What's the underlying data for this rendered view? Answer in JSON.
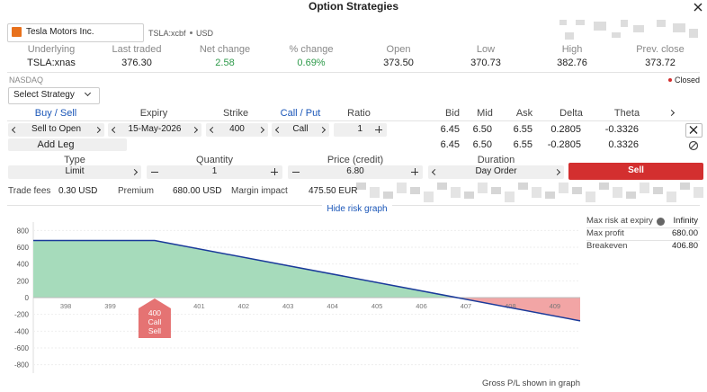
{
  "header": {
    "title": "Option Strategies"
  },
  "instrument": {
    "name": "Tesla Motors Inc.",
    "symbol": "TSLA:xcbf",
    "currency": "USD"
  },
  "quote": [
    {
      "label": "Underlying",
      "value": "TSLA:xnas"
    },
    {
      "label": "Last traded",
      "value": "376.30"
    },
    {
      "label": "Net change",
      "value": "2.58"
    },
    {
      "label": "% change",
      "value": "0.69%"
    },
    {
      "label": "Open",
      "value": "373.50"
    },
    {
      "label": "Low",
      "value": "370.73"
    },
    {
      "label": "High",
      "value": "382.76"
    },
    {
      "label": "Prev. close",
      "value": "373.72"
    }
  ],
  "exchange": "NASDAQ",
  "status": "Closed",
  "strategy_select": "Select Strategy",
  "legs": {
    "headers": [
      "Buy / Sell",
      "Expiry",
      "Strike",
      "Call / Put",
      "Ratio",
      "Bid",
      "Mid",
      "Ask",
      "Delta",
      "Theta"
    ],
    "row": {
      "side": "Sell to Open",
      "expiry": "15-May-2026",
      "strike": "400",
      "type": "Call",
      "ratio": "1",
      "bid": "6.45",
      "mid": "6.50",
      "ask": "6.55",
      "delta": "0.2805",
      "theta": "-0.3326"
    },
    "add_leg": "Add Leg",
    "totals": [
      "6.45",
      "6.50",
      "6.55",
      "-0.2805",
      "0.3326"
    ]
  },
  "order": {
    "fields": [
      {
        "label": "Type",
        "value": "Limit"
      },
      {
        "label": "Quantity",
        "value": "1"
      },
      {
        "label": "Price (credit)",
        "value": "6.80"
      },
      {
        "label": "Duration",
        "value": "Day Order"
      }
    ],
    "button": "Sell"
  },
  "summary": [
    {
      "label": "Trade fees",
      "value": "0.30 USD"
    },
    {
      "label": "Premium",
      "value": "680.00 USD"
    },
    {
      "label": "Margin impact",
      "value": "475.50 EUR"
    }
  ],
  "toggle": "Hide risk graph",
  "risk_stats": [
    {
      "label": "Max risk at expiry",
      "value": "Infinity"
    },
    {
      "label": "Max profit",
      "value": "680.00"
    },
    {
      "label": "Breakeven",
      "value": "406.80"
    }
  ],
  "chart_data": {
    "type": "line",
    "x": [
      397.27,
      400,
      409.57
    ],
    "values": [
      680,
      680,
      -277
    ],
    "color": "#1a3a9a",
    "profit_color": "#a6dbbb",
    "loss_color": "#f2a5a5",
    "grid": true,
    "xlim": [
      397.27,
      409.57
    ],
    "xticks": [
      398,
      399,
      400,
      401,
      402,
      403,
      404,
      405,
      406,
      407,
      408,
      409
    ],
    "ylim": [
      -900,
      900
    ],
    "yticks": [
      800,
      600,
      400,
      200,
      0,
      -200,
      -400,
      -600,
      -800
    ],
    "marker": {
      "x": 400,
      "labels": [
        "400",
        "Call",
        "Sell"
      ],
      "color": "#e57373"
    },
    "footnote": "Gross P/L shown in graph"
  }
}
